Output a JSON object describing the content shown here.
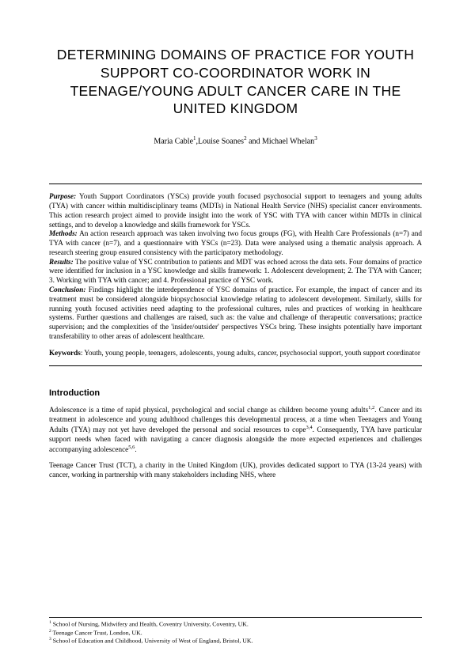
{
  "title": "DETERMINING DOMAINS OF PRACTICE FOR YOUTH SUPPORT CO-COORDINATOR WORK IN TEENAGE/YOUNG ADULT CANCER CARE IN THE UNITED KINGDOM",
  "authors_html": "Maria Cable<sup>1</sup>,Louise Soanes<sup>2</sup> and Michael Whelan<sup>3</sup>",
  "abstract": {
    "purpose": {
      "label": "Purpose:",
      "text": " Youth Support Coordinators (YSCs) provide youth focused psychosocial support to teenagers and young adults (TYA) with cancer within multidisciplinary teams (MDTs) in National Health Service (NHS) specialist cancer environments. This action research project aimed to provide insight into the work of YSC with TYA with cancer within MDTs in clinical settings, and to develop a knowledge and skills framework for YSCs."
    },
    "methods": {
      "label": "Methods:",
      "text": " An action research approach was taken involving two focus groups (FG), with Health Care Professionals (n=7) and TYA with cancer (n=7), and a questionnaire with YSCs (n=23). Data were analysed using a thematic analysis approach. A research steering group ensured consistency with the participatory methodology."
    },
    "results": {
      "label": "Results:",
      "text": " The positive value of YSC contribution to patients and MDT was echoed across the data sets. Four domains of practice were identified for inclusion in a YSC knowledge and skills framework: 1. Adolescent development; 2. The TYA with Cancer; 3. Working with TYA with cancer; and 4. Professional practice of YSC work."
    },
    "conclusion": {
      "label": "Conclusion:",
      "text": " Findings highlight the interdependence of YSC domains of practice. For example, the impact of cancer and its treatment must be considered alongside biopsychosocial knowledge relating to adolescent development. Similarly, skills for running youth focused activities need adapting to the professional cultures, rules and practices of working in healthcare systems. Further questions and challenges are raised, such as: the value and challenge of therapeutic conversations; practice supervision; and the complexities of the 'insider/outsider' perspectives YSCs bring. These insights potentially have important transferability to other areas of adolescent healthcare."
    }
  },
  "keywords": {
    "label": "Keywords",
    "text": ": Youth, young people, teenagers, adolescents, young adults, cancer, psychosocial support, youth support coordinator"
  },
  "introduction": {
    "heading": "Introduction",
    "para1_html": "Adolescence is a time of rapid physical, psychological and social change as children become young adults<sup>1,2</sup>. Cancer and its treatment in adolescence and young adulthood challenges this developmental process, at a time when Teenagers and Young Adults (TYA) may not yet have developed the personal and social resources to cope<sup>3,4</sup>. Consequently, TYA have particular support needs when faced with navigating a cancer diagnosis alongside the more expected experiences and challenges accompanying adolescence<sup>5,6</sup>.",
    "para2_html": "Teenage Cancer Trust (TCT), a charity in the United Kingdom (UK), provides dedicated support to TYA (13-24 years) with cancer, working in partnership with many stakeholders including NHS, where"
  },
  "footnotes": {
    "f1_html": "<sup>1</sup> School of Nursing, Midwifery and Health, Coventry University, Coventry, UK.",
    "f2_html": "<sup>2</sup> Teenage Cancer Trust, London, UK.",
    "f3_html": "<sup>3</sup> School of Education and Childhood, University of West of England, Bristol, UK."
  }
}
